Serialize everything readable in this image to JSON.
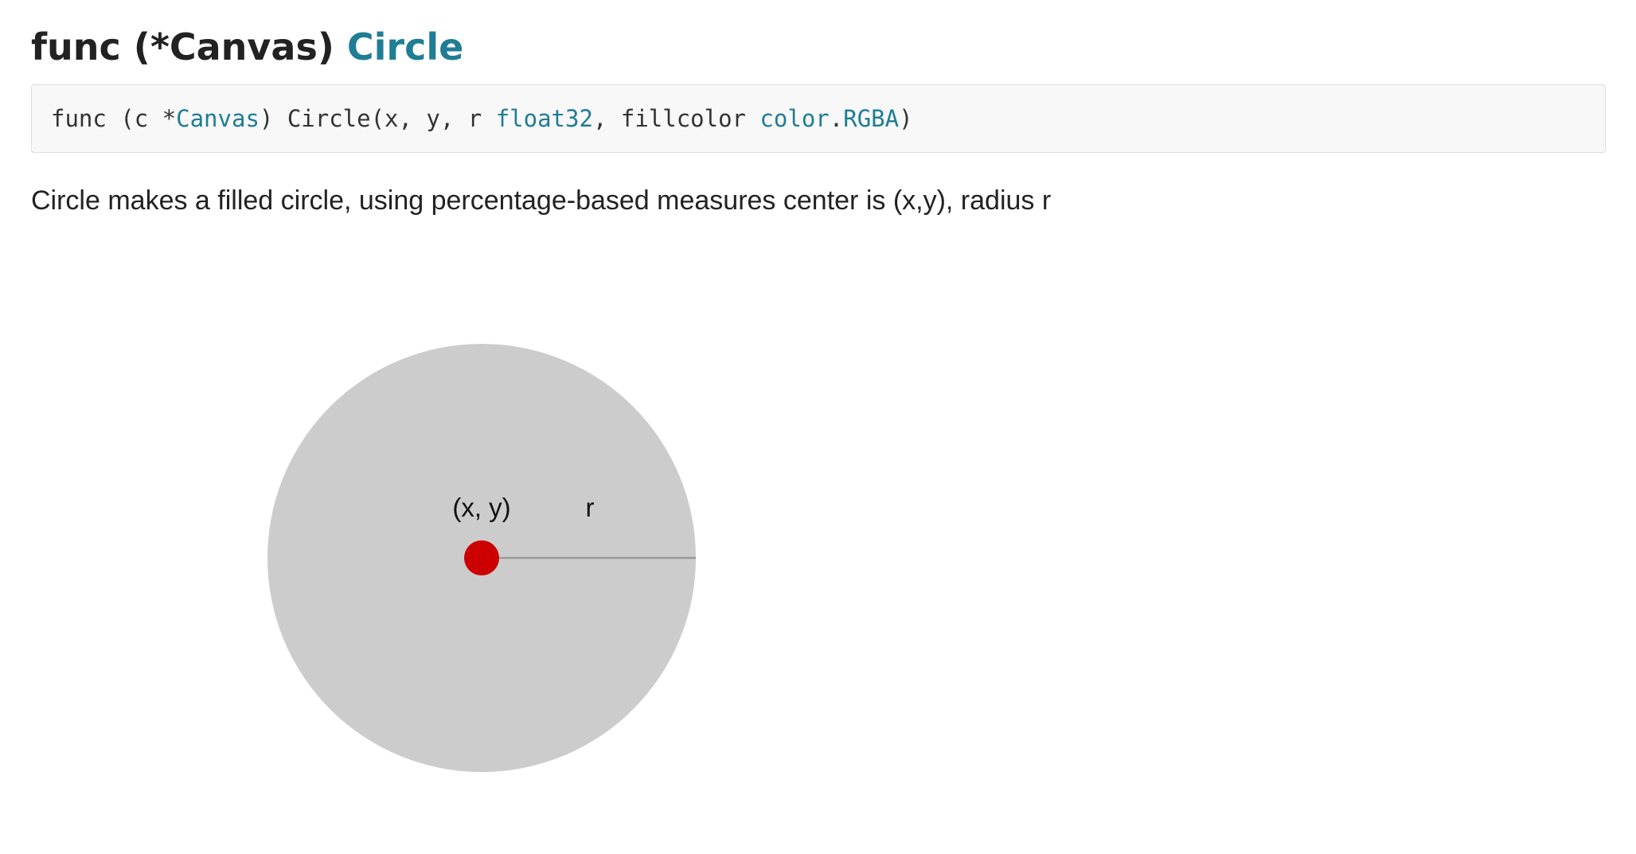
{
  "heading": {
    "prefix": "func (*Canvas) ",
    "name": "Circle"
  },
  "signature": {
    "part1": "func (c *",
    "receiver_type": "Canvas",
    "part2": ") Circle(x, y, r ",
    "param_type": "float32",
    "part3": ", fillcolor ",
    "color_pkg": "color",
    "dot": ".",
    "color_type": "RGBA",
    "part4": ")"
  },
  "description": "Circle makes a filled circle, using percentage-based measures center is (x,y), radius r",
  "diagram": {
    "center_label": "(x, y)",
    "radius_label": "r",
    "colors": {
      "circle_fill": "#cccccc",
      "center_dot": "#cc0000",
      "radius_line": "#999999"
    }
  }
}
